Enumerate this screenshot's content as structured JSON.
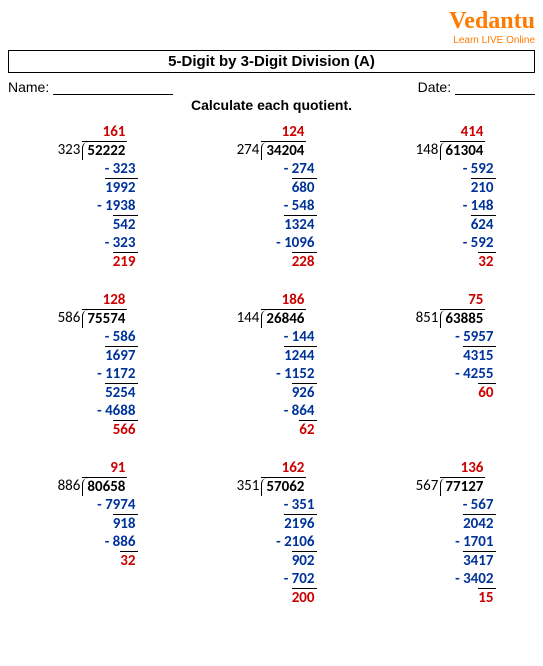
{
  "brand": {
    "logo": "Vedantu",
    "tagline": "Learn LIVE Online"
  },
  "title": "5-Digit by 3-Digit Division (A)",
  "labels": {
    "name": "Name:",
    "date": "Date:"
  },
  "instruction": "Calculate each quotient.",
  "colors": {
    "quotient": "#c00",
    "sub": "#003399",
    "remainder": "#c00"
  },
  "problems": [
    {
      "divisor": "323",
      "dividend": "52222",
      "quotient": "161",
      "steps": [
        {
          "t": "sub",
          "v": "- 323"
        },
        {
          "t": "bring",
          "v": "1992"
        },
        {
          "t": "sub",
          "v": "- 1938"
        },
        {
          "t": "bring",
          "v": "542"
        },
        {
          "t": "sub",
          "v": "- 323"
        },
        {
          "t": "rem",
          "v": "219"
        }
      ]
    },
    {
      "divisor": "274",
      "dividend": "34204",
      "quotient": "124",
      "steps": [
        {
          "t": "sub",
          "v": "- 274"
        },
        {
          "t": "bring",
          "v": "680"
        },
        {
          "t": "sub",
          "v": "- 548"
        },
        {
          "t": "bring",
          "v": "1324"
        },
        {
          "t": "sub",
          "v": "- 1096"
        },
        {
          "t": "rem",
          "v": "228"
        }
      ]
    },
    {
      "divisor": "148",
      "dividend": "61304",
      "quotient": "414",
      "steps": [
        {
          "t": "sub",
          "v": "- 592"
        },
        {
          "t": "bring",
          "v": "210"
        },
        {
          "t": "sub",
          "v": "- 148"
        },
        {
          "t": "bring",
          "v": "624"
        },
        {
          "t": "sub",
          "v": "- 592"
        },
        {
          "t": "rem",
          "v": "32"
        }
      ]
    },
    {
      "divisor": "586",
      "dividend": "75574",
      "quotient": "128",
      "steps": [
        {
          "t": "sub",
          "v": "- 586"
        },
        {
          "t": "bring",
          "v": "1697"
        },
        {
          "t": "sub",
          "v": "- 1172"
        },
        {
          "t": "bring",
          "v": "5254"
        },
        {
          "t": "sub",
          "v": "- 4688"
        },
        {
          "t": "rem",
          "v": "566"
        }
      ]
    },
    {
      "divisor": "144",
      "dividend": "26846",
      "quotient": "186",
      "steps": [
        {
          "t": "sub",
          "v": "- 144"
        },
        {
          "t": "bring",
          "v": "1244"
        },
        {
          "t": "sub",
          "v": "- 1152"
        },
        {
          "t": "bring",
          "v": "926"
        },
        {
          "t": "sub",
          "v": "- 864"
        },
        {
          "t": "rem",
          "v": "62"
        }
      ]
    },
    {
      "divisor": "851",
      "dividend": "63885",
      "quotient": "75",
      "steps": [
        {
          "t": "sub",
          "v": "- 5957"
        },
        {
          "t": "bring",
          "v": "4315"
        },
        {
          "t": "sub",
          "v": "- 4255"
        },
        {
          "t": "rem",
          "v": "60"
        }
      ]
    },
    {
      "divisor": "886",
      "dividend": "80658",
      "quotient": "91",
      "steps": [
        {
          "t": "sub",
          "v": "- 7974"
        },
        {
          "t": "bring",
          "v": "918"
        },
        {
          "t": "sub",
          "v": "- 886"
        },
        {
          "t": "rem",
          "v": "32"
        }
      ]
    },
    {
      "divisor": "351",
      "dividend": "57062",
      "quotient": "162",
      "steps": [
        {
          "t": "sub",
          "v": "- 351"
        },
        {
          "t": "bring",
          "v": "2196"
        },
        {
          "t": "sub",
          "v": "- 2106"
        },
        {
          "t": "bring",
          "v": "902"
        },
        {
          "t": "sub",
          "v": "- 702"
        },
        {
          "t": "rem",
          "v": "200"
        }
      ]
    },
    {
      "divisor": "567",
      "dividend": "77127",
      "quotient": "136",
      "steps": [
        {
          "t": "sub",
          "v": "- 567"
        },
        {
          "t": "bring",
          "v": "2042"
        },
        {
          "t": "sub",
          "v": "- 1701"
        },
        {
          "t": "bring",
          "v": "3417"
        },
        {
          "t": "sub",
          "v": "- 3402"
        },
        {
          "t": "rem",
          "v": "15"
        }
      ]
    }
  ]
}
